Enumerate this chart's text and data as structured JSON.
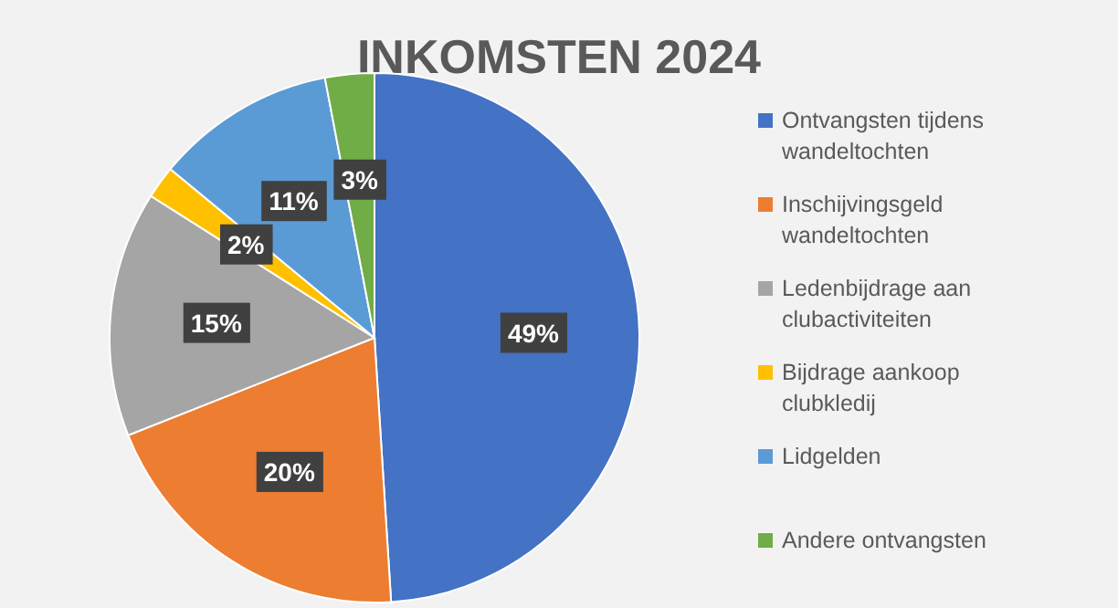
{
  "chart_data": {
    "type": "pie",
    "title": "INKOMSTEN 2024",
    "categories": [
      "Ontvangsten tijdens wandeltochten",
      "Inschijvingsgeld wandeltochten",
      "Ledenbijdrage aan clubactiviteiten",
      "Bijdrage aankoop clubkledij",
      "Lidgelden",
      "Andere ontvangsten"
    ],
    "values": [
      49,
      20,
      15,
      2,
      11,
      3
    ],
    "colors": [
      "#4472c4",
      "#ed7d31",
      "#a5a5a5",
      "#ffc000",
      "#5b9bd5",
      "#70ad47"
    ],
    "value_labels": [
      "49%",
      "20%",
      "15%",
      "2%",
      "11%",
      "3%"
    ],
    "legend": "right"
  }
}
